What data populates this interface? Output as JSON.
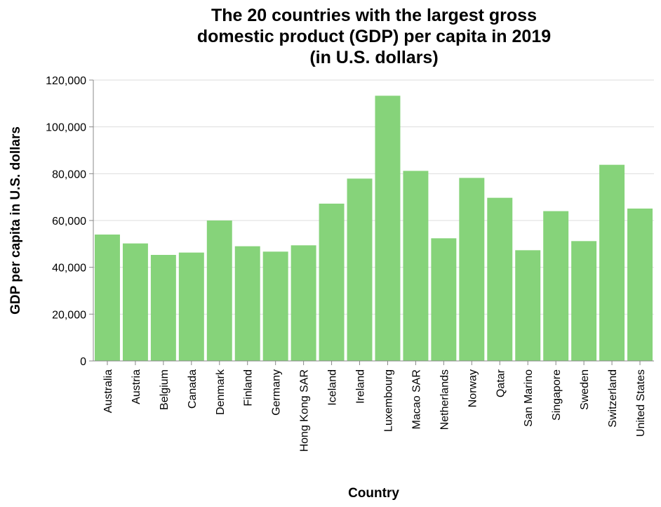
{
  "chart_data": {
    "type": "bar",
    "title": [
      "The 20 countries with the largest gross",
      "domestic product (GDP) per capita in 2019",
      "(in U.S. dollars)"
    ],
    "xlabel": "Country",
    "ylabel": "GDP per capita in U.S. dollars",
    "ylim": [
      0,
      120000
    ],
    "yticks": [
      0,
      20000,
      40000,
      60000,
      80000,
      100000,
      120000
    ],
    "ytick_labels": [
      "0",
      "20,000",
      "40,000",
      "60,000",
      "80,000",
      "100,000",
      "120,000"
    ],
    "grid": true,
    "bar_color": "#86d37a",
    "categories": [
      "Australia",
      "Austria",
      "Belgium",
      "Canada",
      "Denmark",
      "Finland",
      "Germany",
      "Hong Kong SAR",
      "Iceland",
      "Ireland",
      "Luxembourg",
      "Macao SAR",
      "Netherlands",
      "Norway",
      "Qatar",
      "San Marino",
      "Singapore",
      "Sweden",
      "Switzerland",
      "United States"
    ],
    "values": [
      54000,
      50200,
      45300,
      46300,
      60000,
      49000,
      46700,
      49400,
      67200,
      77900,
      113300,
      81200,
      52400,
      78200,
      69700,
      47300,
      64000,
      51200,
      83800,
      65100
    ]
  }
}
